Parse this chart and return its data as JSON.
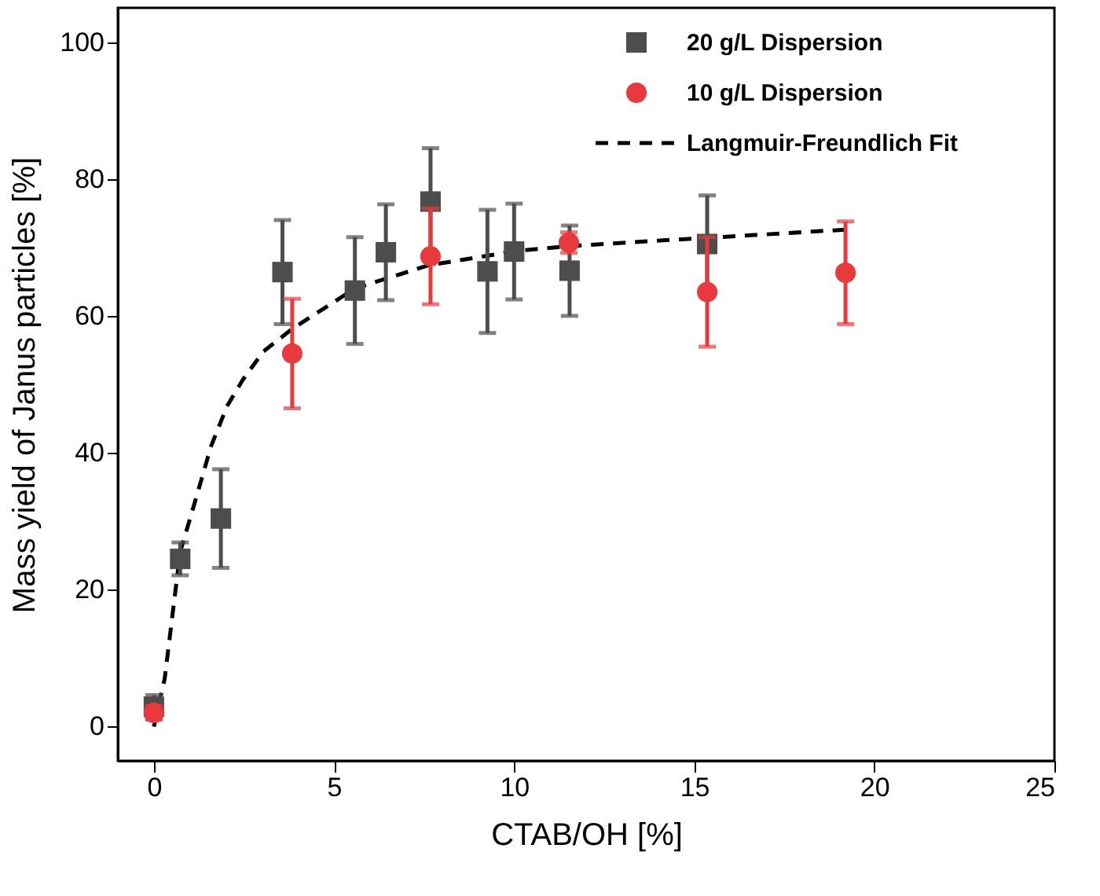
{
  "chart_data": {
    "type": "scatter",
    "xlabel": "CTAB/OH [%]",
    "ylabel": "Mass yield of Janus particles [%]",
    "xlim": [
      -1,
      25
    ],
    "ylim": [
      -5,
      105
    ],
    "xticks": [
      0,
      5,
      10,
      15,
      20,
      25
    ],
    "yticks": [
      0,
      20,
      40,
      60,
      80,
      100
    ],
    "grid": false,
    "legend": "top right",
    "series": [
      {
        "name": "20 g/L Dispersion",
        "marker": "square",
        "color": "#4d4d4d",
        "x": [
          0,
          0.73,
          1.86,
          3.57,
          5.58,
          6.44,
          7.68,
          9.26,
          10.0,
          11.54,
          15.36
        ],
        "values": [
          2.9,
          24.5,
          30.4,
          66.4,
          63.7,
          69.3,
          76.7,
          66.5,
          69.4,
          66.6,
          70.5
        ],
        "errors": [
          1.7,
          2.4,
          7.2,
          7.6,
          7.8,
          7,
          7.8,
          9,
          7,
          6.6,
          7.1
        ]
      },
      {
        "name": "10 g/L Dispersion",
        "marker": "circle",
        "color": "#e8393c",
        "x": [
          0,
          3.84,
          7.68,
          11.52,
          15.36,
          19.2
        ],
        "values": [
          2.0,
          54.5,
          68.7,
          70.7,
          63.5,
          66.3
        ],
        "errors": [
          1,
          8,
          7,
          1.5,
          8,
          7.5
        ]
      },
      {
        "name": "Langmuir-Freundlich Fit",
        "type": "line",
        "marker": "none",
        "line_style": "dashed",
        "color": "#000000",
        "x": [
          0,
          0.3,
          0.73,
          1.15,
          1.59,
          2.03,
          2.46,
          3.04,
          3.84,
          5.58,
          7.63,
          10.1,
          11.54,
          13.7,
          15.36,
          19.2
        ],
        "values": [
          0,
          7,
          25.5,
          33,
          41,
          46.8,
          50.6,
          54.8,
          58.1,
          64,
          67.4,
          69.5,
          70.2,
          70.9,
          71.4,
          72.6
        ]
      }
    ]
  }
}
